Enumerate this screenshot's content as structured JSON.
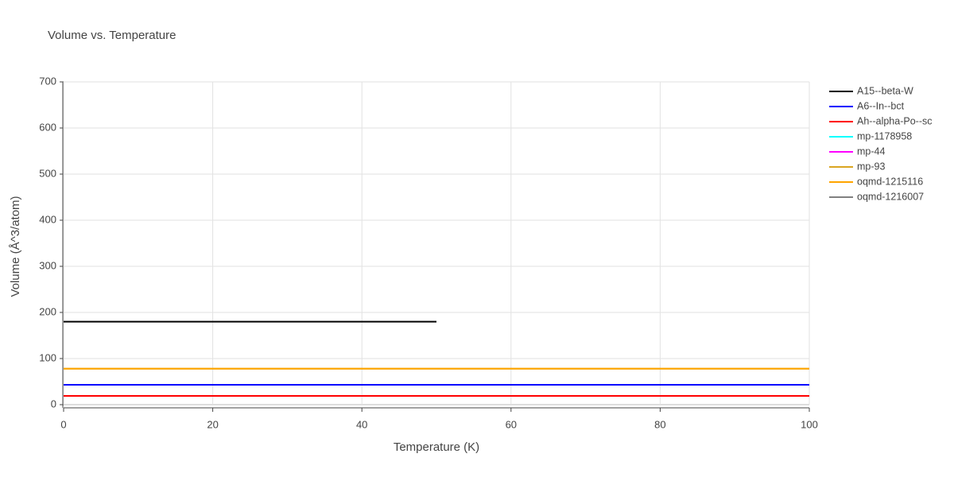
{
  "chart_data": {
    "type": "line",
    "title": "Volume vs. Temperature",
    "x_label": "Temperature (K)",
    "y_label": "Volume (Å^3/atom)",
    "x": [
      0,
      50,
      100
    ],
    "series": [
      {
        "name": "A15--beta-W",
        "color": "#000000",
        "values": [
          180,
          180,
          null
        ]
      },
      {
        "name": "A6--In--bct",
        "color": "#0000ff",
        "values": [
          43,
          43,
          43
        ]
      },
      {
        "name": "Ah--alpha-Po--sc",
        "color": "#ff0000",
        "values": [
          19,
          19,
          19
        ]
      },
      {
        "name": "mp-1178958",
        "color": "#00ffff",
        "values": [
          null,
          null,
          null
        ]
      },
      {
        "name": "mp-44",
        "color": "#ff00ff",
        "values": [
          null,
          null,
          null
        ]
      },
      {
        "name": "mp-93",
        "color": "#daa520",
        "values": [
          78,
          78,
          78
        ]
      },
      {
        "name": "oqmd-1215116",
        "color": "#ffa500",
        "values": [
          78,
          78,
          78
        ]
      },
      {
        "name": "oqmd-1216007",
        "color": "#808080",
        "values": [
          null,
          null,
          null
        ]
      }
    ],
    "xlim": [
      0,
      100
    ],
    "ylim": [
      0,
      700
    ],
    "xticks": [
      0,
      20,
      40,
      60,
      80,
      100
    ],
    "yticks": [
      0,
      100,
      200,
      300,
      400,
      500,
      600,
      700
    ],
    "grid": true,
    "legend": "right"
  }
}
